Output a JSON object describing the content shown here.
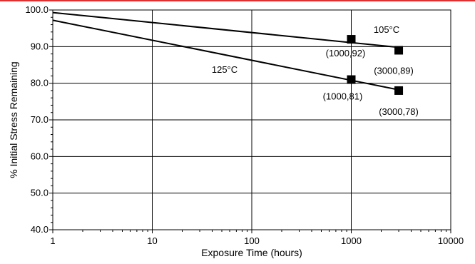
{
  "colors": {
    "top_rule": "#e03030",
    "ink": "#000000",
    "background": "#ffffff"
  },
  "chart_data": {
    "type": "line",
    "xscale": "log",
    "xlim": [
      1,
      10000
    ],
    "ylim": [
      40,
      100
    ],
    "xlabel": "Exposure Time (hours)",
    "ylabel": "% Initial Stress Remaining",
    "x_ticks": [
      1,
      10,
      100,
      1000,
      10000
    ],
    "x_tick_labels": [
      "1",
      "10",
      "100",
      "1000",
      "10000"
    ],
    "y_ticks": [
      40,
      50,
      60,
      70,
      80,
      90,
      100
    ],
    "y_tick_labels": [
      "40.0",
      "50.0",
      "60.0",
      "70.0",
      "80.0",
      "90.0",
      "100.0"
    ],
    "grid": true,
    "series": [
      {
        "name": "105°C",
        "fit_line": {
          "x": [
            1,
            3000
          ],
          "y": [
            99.3,
            89.8
          ]
        },
        "points": [
          {
            "x": 1000,
            "y": 92,
            "label": "(1000,92)"
          },
          {
            "x": 3000,
            "y": 89,
            "label": "(3000,89)"
          }
        ]
      },
      {
        "name": "125°C",
        "fit_line": {
          "x": [
            1,
            3000
          ],
          "y": [
            97.2,
            78.2
          ]
        },
        "points": [
          {
            "x": 1000,
            "y": 81,
            "label": "(1000,81)"
          },
          {
            "x": 3000,
            "y": 78,
            "label": "(3000,78)"
          }
        ]
      }
    ]
  }
}
